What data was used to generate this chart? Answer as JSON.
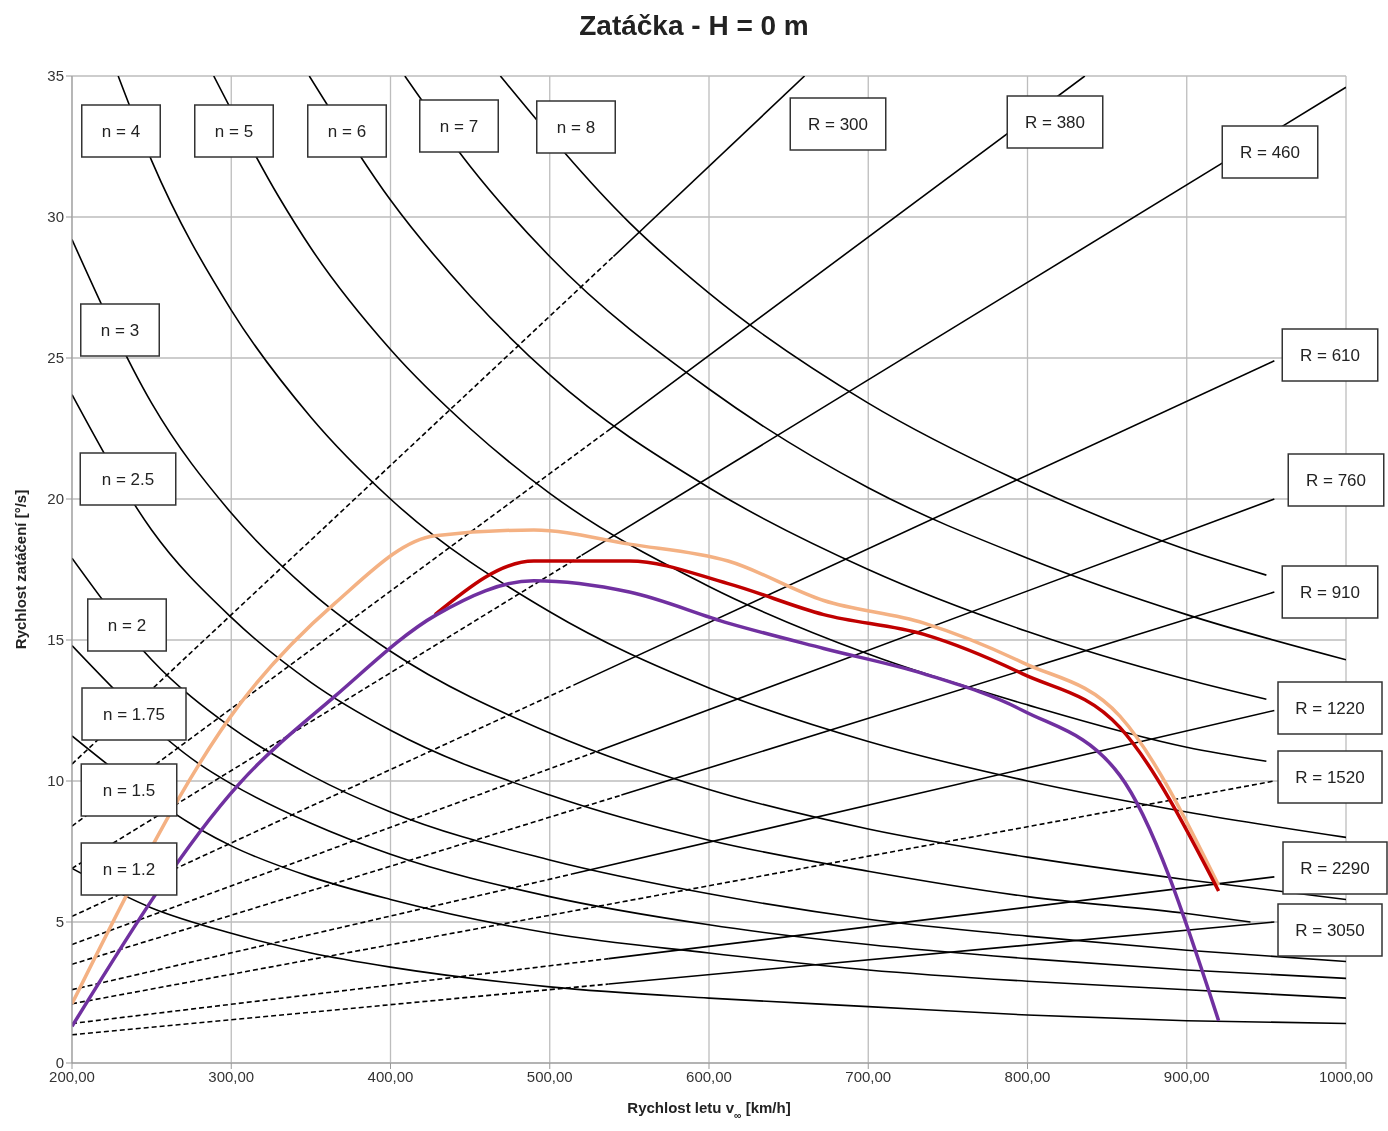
{
  "chart_data": {
    "type": "line",
    "title": "Zatáčka - H = 0 m",
    "xlabel": "Rychlost letu v$_{∞}$ [km/h]",
    "ylabel": "Rychlost zatáčení [°/s]",
    "xlim": [
      200,
      1000
    ],
    "xticks": [
      {
        "value": 200,
        "label": "200,00"
      },
      {
        "value": 300,
        "label": "300,00"
      },
      {
        "value": 400,
        "label": "400,00"
      },
      {
        "value": 500,
        "label": "500,00"
      },
      {
        "value": 600,
        "label": "600,00"
      },
      {
        "value": 700,
        "label": "700,00"
      },
      {
        "value": 800,
        "label": "800,00"
      },
      {
        "value": 900,
        "label": "900,00"
      },
      {
        "value": 1000,
        "label": "1000,00"
      }
    ],
    "ylim": [
      0,
      35
    ],
    "yticks": [
      0,
      5,
      10,
      15,
      20,
      25,
      30,
      35
    ],
    "grid": true,
    "marker": "none",
    "series": [
      {
        "color": "#000000",
        "line_style": "solid",
        "x": [
          200,
          250,
          300,
          350,
          400,
          500,
          600,
          700,
          800,
          900,
          1000
        ],
        "values": [
          6.9,
          5.5,
          4.6,
          3.9,
          3.4,
          2.7,
          2.3,
          2.0,
          1.7,
          1.5,
          1.4
        ]
      },
      {
        "color": "#000000",
        "line_style": "solid",
        "x": [
          200,
          280,
          300,
          350,
          400,
          500,
          600,
          700,
          800,
          900,
          1000
        ],
        "values": [
          11.6,
          8.3,
          7.7,
          6.6,
          5.8,
          4.6,
          3.9,
          3.3,
          2.9,
          2.6,
          2.3
        ]
      },
      {
        "color": "#000000",
        "line_style": "solid",
        "x": [
          200,
          280,
          300,
          350,
          400,
          500,
          600,
          700,
          800,
          900,
          1000
        ],
        "values": [
          14.8,
          10.6,
          9.9,
          8.5,
          7.4,
          5.9,
          4.9,
          4.2,
          3.7,
          3.3,
          3.0
        ]
      },
      {
        "color": "#000000",
        "line_style": "solid",
        "x": [
          200,
          250,
          300,
          350,
          400,
          500,
          600,
          700,
          800,
          900,
          1000
        ],
        "values": [
          17.9,
          14.3,
          11.9,
          10.2,
          8.9,
          7.2,
          6.0,
          5.1,
          4.5,
          4.0,
          3.6
        ]
      },
      {
        "color": "#000000",
        "line_style": "solid",
        "x": [
          200,
          250,
          300,
          350,
          400,
          500,
          600,
          700,
          800,
          900,
          940
        ],
        "values": [
          23.7,
          18.9,
          15.8,
          13.5,
          11.8,
          9.5,
          7.9,
          6.8,
          5.9,
          5.3,
          5.0
        ]
      },
      {
        "color": "#000000",
        "line_style": "solid",
        "x": [
          200,
          250,
          300,
          350,
          400,
          500,
          600,
          700,
          800,
          900,
          1000
        ],
        "values": [
          29.2,
          23.4,
          19.5,
          16.7,
          14.6,
          11.7,
          9.7,
          8.3,
          7.3,
          6.5,
          5.8
        ]
      },
      {
        "color": "#000000",
        "line_style": "solid",
        "x": [
          229,
          250,
          300,
          350,
          400,
          500,
          600,
          700,
          800,
          900,
          1000
        ],
        "values": [
          35,
          32.0,
          26.7,
          22.9,
          20.0,
          16.0,
          13.3,
          11.4,
          10.0,
          8.9,
          8.0
        ]
      },
      {
        "color": "#000000",
        "line_style": "solid",
        "x": [
          289,
          330,
          350,
          400,
          450,
          500,
          600,
          700,
          800,
          900,
          950
        ],
        "values": [
          35,
          30.7,
          28.9,
          25.3,
          22.5,
          20.2,
          16.9,
          14.5,
          12.7,
          11.2,
          10.7
        ]
      },
      {
        "color": "#000000",
        "line_style": "solid",
        "x": [
          349,
          400,
          450,
          500,
          600,
          700,
          800,
          900,
          950
        ],
        "values": [
          35,
          30.6,
          27.2,
          24.4,
          20.4,
          17.5,
          15.3,
          13.6,
          12.9
        ]
      },
      {
        "color": "#000000",
        "line_style": "solid",
        "x": [
          409,
          450,
          500,
          600,
          700,
          800,
          900,
          1000
        ],
        "values": [
          35,
          31.8,
          28.6,
          23.9,
          20.4,
          17.9,
          15.9,
          14.3
        ]
      },
      {
        "color": "#000000",
        "line_style": "solid",
        "x": [
          469,
          550,
          600,
          700,
          800,
          900,
          950
        ],
        "values": [
          35,
          29.8,
          27.3,
          23.4,
          20.5,
          18.2,
          17.3
        ]
      },
      {
        "color": "#000000",
        "line_style": "dashed",
        "x": [
          200,
          540
        ],
        "values": [
          10.6,
          28.6
        ]
      },
      {
        "color": "#000000",
        "line_style": "solid",
        "x": [
          540,
          660
        ],
        "values": [
          28.6,
          35
        ]
      },
      {
        "color": "#000000",
        "line_style": "dashed",
        "x": [
          200,
          536
        ],
        "values": [
          8.4,
          22.4
        ]
      },
      {
        "color": "#000000",
        "line_style": "solid",
        "x": [
          536,
          836
        ],
        "values": [
          22.4,
          35
        ]
      },
      {
        "color": "#000000",
        "line_style": "dashed",
        "x": [
          200,
          520
        ],
        "values": [
          6.9,
          18.0
        ]
      },
      {
        "color": "#000000",
        "line_style": "solid",
        "x": [
          520,
          1000
        ],
        "values": [
          18.0,
          34.6
        ]
      },
      {
        "color": "#000000",
        "line_style": "dashed",
        "x": [
          200,
          515
        ],
        "values": [
          5.2,
          13.4
        ]
      },
      {
        "color": "#000000",
        "line_style": "solid",
        "x": [
          515,
          955
        ],
        "values": [
          13.4,
          24.9
        ]
      },
      {
        "color": "#000000",
        "line_style": "dashed",
        "x": [
          200,
          532
        ],
        "values": [
          4.2,
          11.1
        ]
      },
      {
        "color": "#000000",
        "line_style": "solid",
        "x": [
          532,
          955
        ],
        "values": [
          11.1,
          20.0
        ]
      },
      {
        "color": "#000000",
        "line_style": "dashed",
        "x": [
          200,
          545
        ],
        "values": [
          3.5,
          9.5
        ]
      },
      {
        "color": "#000000",
        "line_style": "solid",
        "x": [
          545,
          955
        ],
        "values": [
          9.5,
          16.7
        ]
      },
      {
        "color": "#000000",
        "line_style": "dashed",
        "x": [
          200,
          514
        ],
        "values": [
          2.6,
          6.7
        ]
      },
      {
        "color": "#000000",
        "line_style": "solid",
        "x": [
          514,
          955
        ],
        "values": [
          6.7,
          12.5
        ]
      },
      {
        "color": "#000000",
        "line_style": "dashed",
        "x": [
          200,
          955
        ],
        "values": [
          2.1,
          10.0
        ]
      },
      {
        "color": "#000000",
        "line_style": "dashed",
        "x": [
          200,
          537
        ],
        "values": [
          1.4,
          3.7
        ]
      },
      {
        "color": "#000000",
        "line_style": "solid",
        "x": [
          537,
          955
        ],
        "values": [
          3.7,
          6.6
        ]
      },
      {
        "color": "#000000",
        "line_style": "dashed",
        "x": [
          200,
          537
        ],
        "values": [
          1.0,
          2.8
        ]
      },
      {
        "color": "#000000",
        "line_style": "solid",
        "x": [
          537,
          955
        ],
        "values": [
          2.8,
          5.0
        ]
      },
      {
        "color": "#f4b183",
        "line_style": "solid",
        "x": [
          200,
          305,
          365,
          428,
          490,
          550,
          612,
          672,
          735,
          797,
          858,
          920
        ],
        "values": [
          2.1,
          12.7,
          16.3,
          18.7,
          18.9,
          18.4,
          17.8,
          16.4,
          15.6,
          14.2,
          12.3,
          6.3
        ]
      },
      {
        "color": "#c00000",
        "line_style": "solid",
        "x": [
          428,
          490,
          550,
          612,
          672,
          735,
          797,
          858,
          920
        ],
        "values": [
          15.9,
          17.8,
          17.8,
          17.0,
          15.9,
          15.2,
          13.8,
          11.9,
          6.1
        ]
      },
      {
        "color": "#7030a0",
        "line_style": "solid",
        "x": [
          200,
          305,
          365,
          429,
          490,
          550,
          612,
          672,
          735,
          797,
          858,
          920
        ],
        "values": [
          1.3,
          9.9,
          13.0,
          15.9,
          17.1,
          16.7,
          15.6,
          14.7,
          13.8,
          12.5,
          10.2,
          1.5
        ]
      }
    ],
    "annotations": [
      "n = 4",
      "n = 5",
      "n = 6",
      "n = 7",
      "n = 8",
      "R = 300",
      "R = 380",
      "R = 460",
      "n = 3",
      "n = 2.5",
      "n = 2",
      "n = 1.75",
      "n = 1.5",
      "n = 1.2",
      "R = 610",
      "R = 760",
      "R = 910",
      "R = 1220",
      "R = 1520",
      "R = 2290",
      "R = 3050"
    ]
  }
}
